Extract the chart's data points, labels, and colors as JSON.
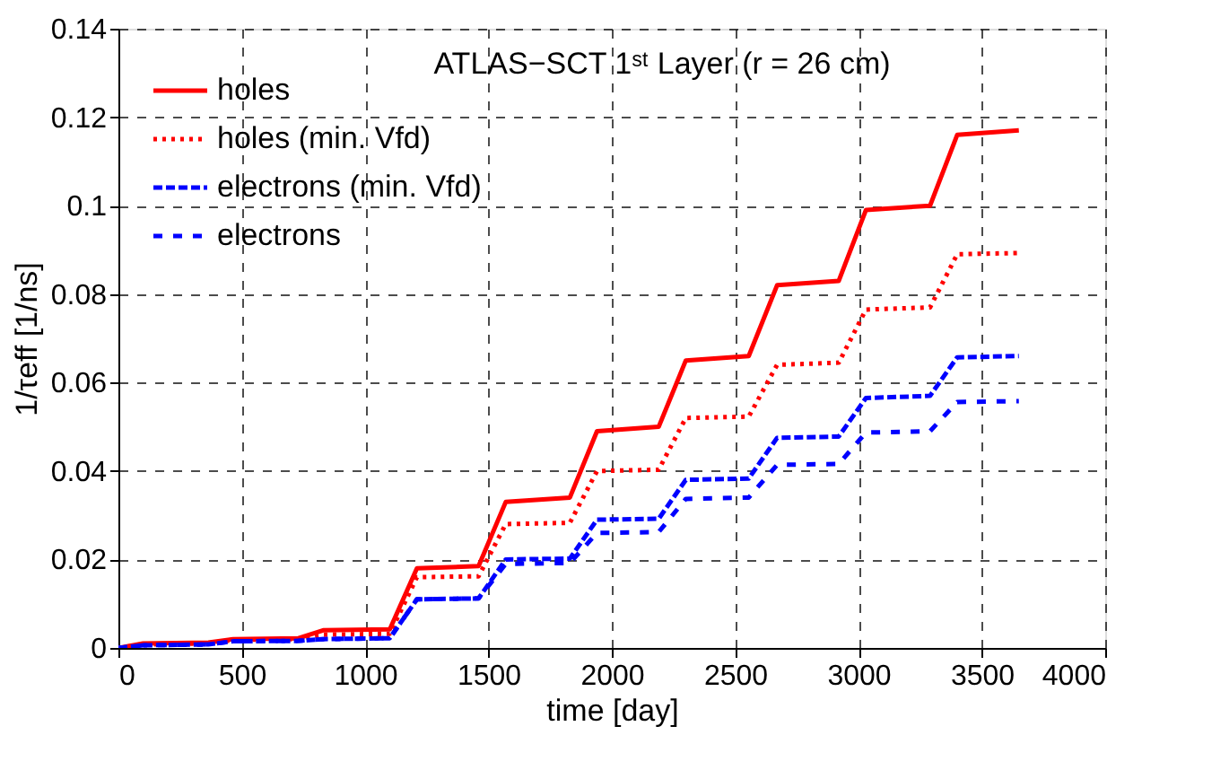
{
  "chart_data": {
    "type": "line",
    "title": "ATLAS−SCT 1ˢᵗ Layer (r = 26 cm)",
    "xlabel": "time [day]",
    "ylabel": "1/τeff [1/ns]",
    "x": [
      0,
      100,
      365,
      465,
      730,
      830,
      1100,
      1210,
      1460,
      1570,
      1830,
      1940,
      2190,
      2300,
      2555,
      2670,
      2920,
      3030,
      3290,
      3400,
      3650
    ],
    "series": [
      {
        "name": "holes",
        "color": "#ff0000",
        "line_style": "solid",
        "values": [
          0,
          0.001,
          0.0012,
          0.002,
          0.0022,
          0.004,
          0.0042,
          0.018,
          0.0185,
          0.033,
          0.034,
          0.049,
          0.05,
          0.065,
          0.066,
          0.082,
          0.083,
          0.099,
          0.1,
          0.116,
          0.117
        ]
      },
      {
        "name": "holes (min. Vfd)",
        "color": "#ff0000",
        "line_style": "dotted",
        "values": [
          0,
          0.0008,
          0.001,
          0.0018,
          0.002,
          0.003,
          0.0032,
          0.016,
          0.0162,
          0.028,
          0.0283,
          0.04,
          0.0403,
          0.052,
          0.0523,
          0.064,
          0.0645,
          0.0765,
          0.077,
          0.089,
          0.0893
        ]
      },
      {
        "name": "electrons (min. Vfd)",
        "color": "#0000ff",
        "line_style": "dashed",
        "values": [
          0,
          0.0006,
          0.0008,
          0.0015,
          0.0016,
          0.002,
          0.0022,
          0.011,
          0.0112,
          0.02,
          0.0202,
          0.029,
          0.0292,
          0.038,
          0.0383,
          0.0475,
          0.0478,
          0.0565,
          0.057,
          0.0657,
          0.066
        ]
      },
      {
        "name": "electrons",
        "color": "#0000ff",
        "line_style": "longdash",
        "values": [
          0,
          0.0006,
          0.0008,
          0.0015,
          0.0016,
          0.002,
          0.0022,
          0.011,
          0.0112,
          0.019,
          0.0192,
          0.026,
          0.0262,
          0.0337,
          0.034,
          0.0414,
          0.0416,
          0.0487,
          0.049,
          0.0556,
          0.0558
        ]
      }
    ],
    "xlim": [
      0,
      4000
    ],
    "xticks": [
      0,
      500,
      1000,
      1500,
      2000,
      2500,
      3000,
      3500,
      4000
    ],
    "ylim": [
      0,
      0.14
    ],
    "yticks": [
      0,
      0.02,
      0.04,
      0.06,
      0.08,
      0.1,
      0.12,
      0.14
    ],
    "grid": true,
    "legend": "top left",
    "marker": "none"
  }
}
